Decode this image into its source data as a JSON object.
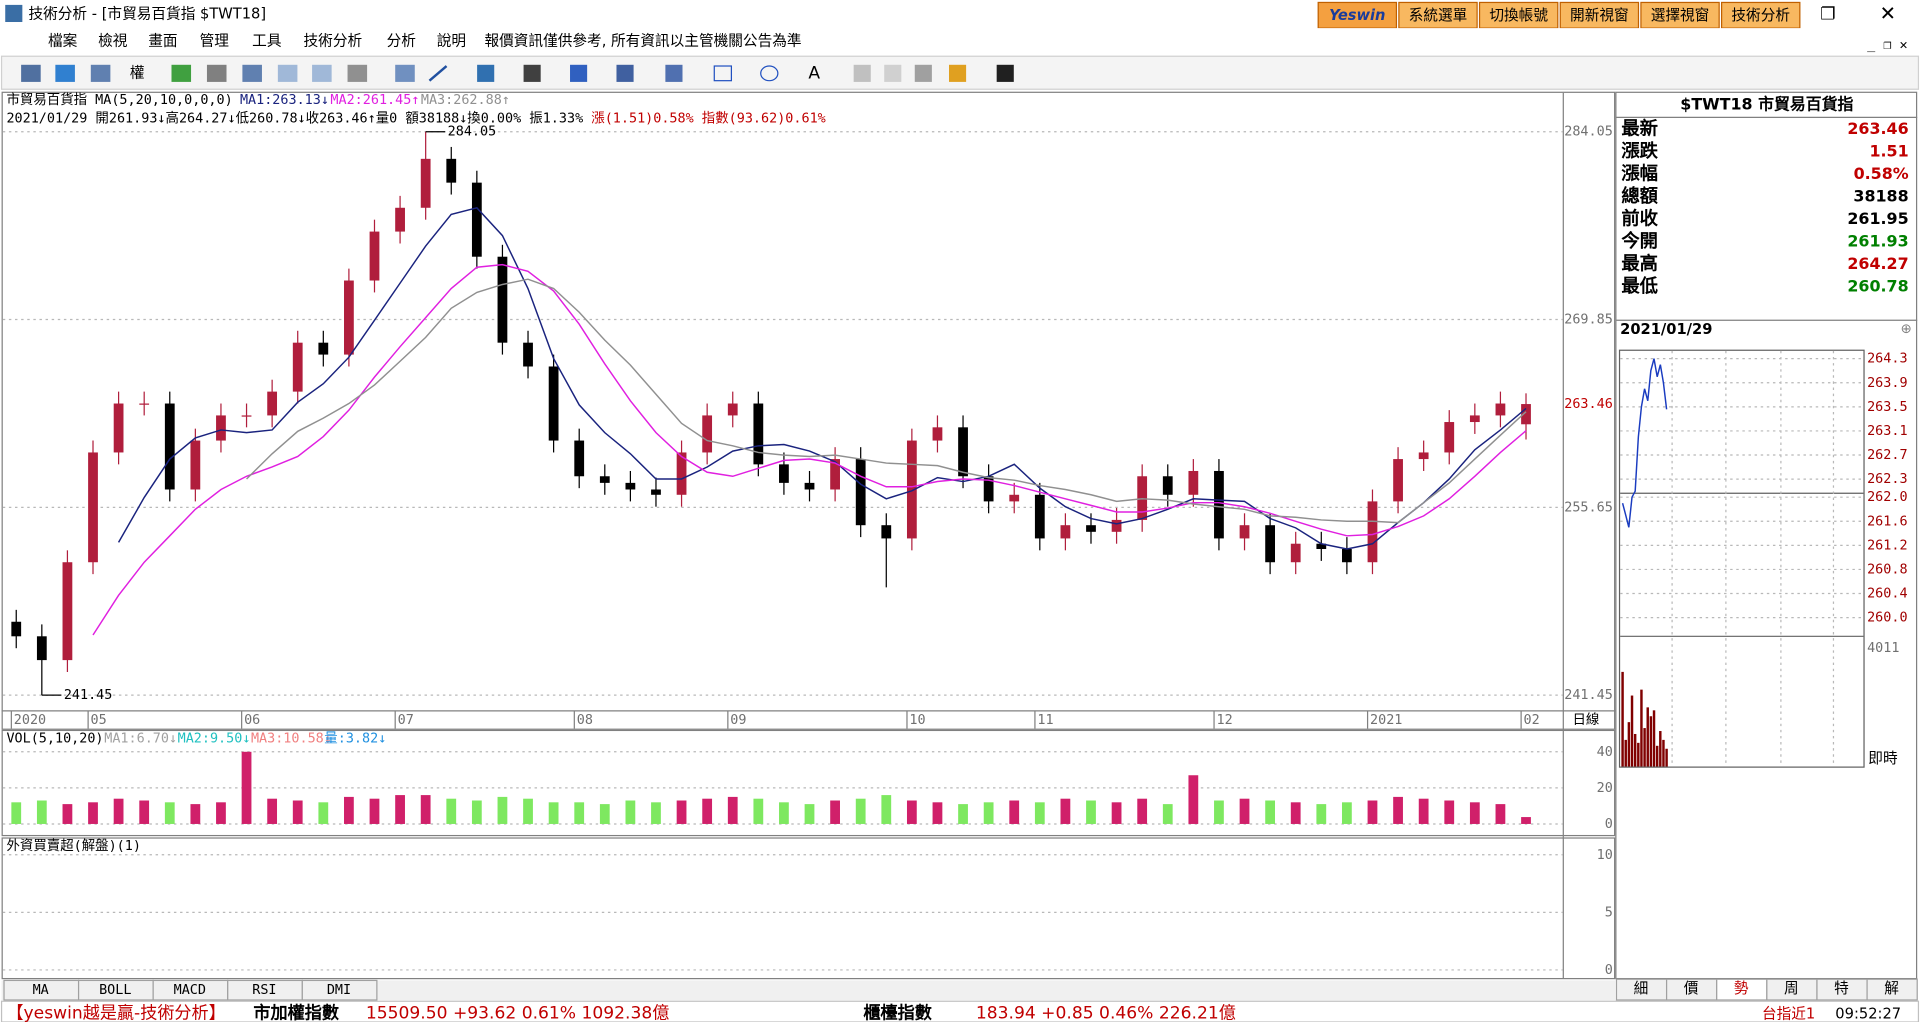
{
  "window": {
    "title": "技術分析 - [市貿易百貨指 $TWT18]",
    "logo": "Yeswin",
    "buttons": [
      "系統選單",
      "切換帳號",
      "開新視窗",
      "選擇視窗",
      "技術分析"
    ]
  },
  "menu": {
    "items": [
      "檔案",
      "檢視",
      "畫面",
      "管理",
      "工具",
      "技術分析",
      "分析",
      "說明"
    ],
    "notice": "報價資訊僅供參考, 所有資訊以主管機關公告為準"
  },
  "toolbar": {
    "label": "權"
  },
  "chart_data": [
    {
      "type": "candlestick",
      "title": "市貿易百貨指 MA(5,20,10,0,0,0)",
      "info": [
        {
          "text": "2021/01/29 開261.93↓高264.27↓低260.78↓收263.46↑量0 額38188↓換0.00% 振1.33% ",
          "color": "#000000"
        },
        {
          "text": "漲(1.51)0.58% 指數(93.62)0.61%",
          "color": "#c00000"
        }
      ],
      "period_label": "日線",
      "categories": [
        "2020",
        null,
        null,
        "05",
        null,
        null,
        null,
        null,
        null,
        "06",
        null,
        null,
        null,
        null,
        null,
        "07",
        null,
        null,
        null,
        null,
        null,
        null,
        "08",
        null,
        null,
        null,
        null,
        null,
        "09",
        null,
        null,
        null,
        null,
        null,
        null,
        "10",
        null,
        null,
        null,
        null,
        "11",
        null,
        null,
        null,
        null,
        null,
        null,
        "12",
        null,
        null,
        null,
        null,
        null,
        "2021",
        null,
        null,
        null,
        null,
        null,
        "02"
      ],
      "open": [
        247.0,
        245.9,
        244.1,
        251.5,
        259.8,
        263.5,
        263.5,
        257.0,
        260.7,
        262.6,
        262.6,
        264.4,
        268.1,
        267.2,
        272.8,
        276.5,
        278.3,
        282.0,
        280.2,
        274.6,
        268.1,
        266.3,
        260.7,
        258.0,
        257.5,
        257.0,
        256.6,
        259.8,
        262.6,
        263.5,
        258.9,
        257.5,
        257.0,
        259.3,
        254.3,
        253.3,
        260.7,
        261.7,
        258.0,
        256.1,
        256.6,
        253.3,
        254.3,
        253.8,
        254.7,
        258.0,
        256.6,
        258.4,
        253.3,
        254.3,
        251.5,
        252.9,
        252.5,
        251.5,
        256.1,
        259.3,
        259.8,
        262.1,
        262.6,
        261.93
      ],
      "high": [
        247.9,
        246.8,
        252.4,
        260.7,
        264.4,
        264.4,
        264.4,
        261.6,
        263.5,
        263.5,
        265.3,
        269.0,
        269.0,
        273.7,
        277.4,
        279.2,
        284.05,
        282.9,
        281.1,
        275.5,
        269.0,
        267.2,
        261.6,
        258.9,
        258.4,
        257.9,
        260.7,
        263.5,
        264.4,
        264.4,
        259.8,
        258.4,
        260.2,
        260.2,
        255.2,
        261.6,
        262.6,
        262.6,
        258.9,
        257.5,
        257.5,
        255.2,
        255.2,
        255.6,
        258.9,
        258.9,
        259.3,
        259.3,
        255.2,
        255.2,
        253.8,
        253.8,
        253.4,
        257.0,
        260.2,
        260.7,
        263.0,
        263.5,
        264.4,
        264.27
      ],
      "low": [
        245.0,
        241.45,
        243.2,
        250.6,
        258.9,
        262.6,
        256.1,
        256.1,
        259.8,
        261.7,
        261.7,
        263.5,
        266.3,
        266.3,
        271.9,
        275.6,
        277.4,
        279.3,
        273.7,
        267.2,
        265.4,
        259.8,
        257.1,
        256.6,
        256.1,
        255.7,
        255.7,
        258.9,
        261.7,
        258.0,
        256.6,
        256.1,
        256.1,
        253.4,
        249.6,
        252.4,
        259.8,
        257.1,
        255.2,
        255.2,
        252.4,
        252.4,
        252.9,
        252.9,
        253.8,
        255.7,
        255.7,
        252.4,
        252.4,
        250.6,
        250.6,
        251.6,
        250.6,
        250.6,
        255.2,
        258.4,
        258.9,
        261.2,
        261.7,
        260.78
      ],
      "close": [
        245.9,
        244.1,
        251.5,
        259.8,
        263.5,
        263.5,
        257.0,
        260.7,
        262.6,
        262.6,
        264.4,
        268.1,
        267.2,
        272.8,
        276.5,
        278.3,
        282.0,
        280.2,
        274.6,
        268.1,
        266.3,
        260.7,
        258.0,
        257.5,
        257.0,
        256.6,
        259.8,
        262.6,
        263.5,
        258.9,
        257.5,
        257.0,
        259.3,
        254.3,
        253.3,
        260.7,
        261.7,
        258.0,
        256.1,
        256.6,
        253.3,
        254.3,
        253.8,
        254.7,
        258.0,
        256.6,
        258.4,
        253.3,
        254.3,
        251.5,
        252.9,
        252.5,
        251.5,
        256.1,
        259.3,
        259.8,
        262.1,
        262.6,
        263.5,
        263.46
      ],
      "up_color": "#b01e3c",
      "down_color": "#000000",
      "series": [
        {
          "name": "MA1:263.13↓",
          "color": "#1a237e",
          "values": [
            null,
            null,
            null,
            null,
            253.0,
            256.4,
            259.3,
            260.9,
            261.5,
            261.3,
            261.5,
            263.6,
            265.0,
            267.0,
            269.8,
            272.6,
            275.4,
            277.8,
            278.3,
            276.2,
            272.2,
            266.9,
            263.4,
            261.3,
            259.7,
            257.8,
            257.8,
            258.7,
            259.9,
            260.3,
            260.4,
            259.9,
            259.1,
            257.4,
            256.3,
            256.9,
            257.9,
            257.6,
            258.0,
            258.9,
            257.1,
            255.7,
            254.8,
            254.4,
            254.8,
            255.5,
            256.3,
            256.2,
            256.1,
            254.8,
            254.1,
            252.9,
            252.5,
            252.9,
            254.5,
            256.0,
            257.8,
            260.0,
            261.5,
            263.13
          ]
        },
        {
          "name": "MA2:261.45↑",
          "color": "#e020e0",
          "values": [
            null,
            null,
            null,
            246.0,
            249.0,
            251.5,
            253.5,
            255.5,
            257.0,
            258.0,
            258.7,
            259.5,
            261.0,
            263.0,
            265.5,
            267.8,
            270.0,
            272.2,
            273.8,
            274.0,
            273.5,
            272.0,
            269.5,
            266.5,
            263.7,
            261.3,
            259.5,
            258.3,
            258.0,
            258.6,
            259.2,
            259.3,
            259.0,
            258.0,
            257.2,
            257.2,
            257.6,
            257.8,
            257.7,
            257.3,
            256.8,
            256.3,
            255.8,
            255.3,
            255.3,
            255.6,
            256.0,
            256.0,
            255.7,
            255.2,
            254.6,
            254.0,
            253.5,
            253.6,
            254.2,
            255.0,
            256.3,
            258.0,
            259.8,
            261.45
          ]
        },
        {
          "name": "MA3:262.88↑",
          "color": "#909090",
          "values": [
            null,
            null,
            null,
            null,
            null,
            null,
            null,
            null,
            null,
            257.8,
            259.7,
            261.4,
            262.4,
            263.5,
            264.9,
            266.7,
            268.5,
            270.7,
            271.9,
            272.5,
            272.9,
            272.2,
            270.4,
            268.3,
            266.4,
            264.2,
            262.0,
            260.7,
            260.3,
            259.8,
            259.6,
            259.5,
            259.6,
            259.3,
            259.0,
            258.9,
            258.8,
            258.3,
            257.9,
            257.7,
            257.3,
            257.0,
            256.6,
            256.1,
            256.3,
            256.2,
            255.9,
            255.7,
            255.5,
            255.0,
            254.9,
            254.7,
            254.6,
            254.6,
            254.5,
            256.0,
            257.5,
            259.3,
            261.1,
            262.88
          ]
        }
      ],
      "ylim": [
        240.4,
        286.8
      ],
      "yticks": [
        284.05,
        269.85,
        255.65,
        241.45
      ],
      "grid": true
    },
    {
      "type": "bar",
      "title": "VOL(5,10,20)",
      "legend": [
        {
          "text": "MA1:6.70↓",
          "color": "#a0a0a0"
        },
        {
          "text": "MA2:9.50↓",
          "color": "#20c0c0"
        },
        {
          "text": "MA3:10.58↓",
          "color": "#f08080"
        },
        {
          "text": "量:3.82↓",
          "color": "#2090e0"
        }
      ],
      "values": [
        12,
        13,
        11,
        12,
        14,
        13,
        12,
        11,
        12,
        40,
        14,
        13,
        12,
        15,
        14,
        16,
        16,
        14,
        13,
        15,
        14,
        12,
        12,
        11,
        13,
        12,
        13,
        14,
        15,
        14,
        12,
        11,
        13,
        14,
        16,
        13,
        12,
        11,
        12,
        13,
        12,
        14,
        13,
        12,
        14,
        11,
        27,
        13,
        14,
        13,
        12,
        11,
        12,
        13,
        15,
        14,
        13,
        12,
        11,
        3.82
      ],
      "up_color": "#d0206a",
      "down_color": "#7ee860",
      "ylim": [
        0,
        51.5
      ],
      "yticks": [
        0,
        20,
        40
      ],
      "grid": true
    },
    {
      "type": "bar",
      "title": "外資買賣超(解盤)(1)",
      "ylim": [
        -0.7,
        11.4
      ],
      "yticks": [
        0,
        5,
        10
      ],
      "grid": true
    },
    {
      "type": "line",
      "title": "2021/01/29",
      "values": [
        261.9,
        261.7,
        261.5,
        262.0,
        262.1,
        263.0,
        263.5,
        263.8,
        263.6,
        264.1,
        264.3,
        264.0,
        264.2,
        263.9,
        263.46
      ],
      "color": "#1a3cc0",
      "ylim": [
        259.7,
        264.45
      ],
      "yticks": [
        264.3,
        263.9,
        263.5,
        263.1,
        262.7,
        262.3,
        {
          "value": 262,
          "label": "262.0"
        },
        261.6,
        261.2,
        260.8,
        260.4,
        {
          "value": 260,
          "label": "260.0"
        }
      ],
      "volume": {
        "values": [
          3200,
          900,
          1500,
          2400,
          1100,
          800,
          2600,
          1300,
          2000,
          1700,
          1900,
          700,
          1200,
          900,
          600
        ],
        "color": "#800000",
        "ylim": [
          0,
          4011
        ],
        "yticks": [
          4011
        ],
        "label": "即時"
      },
      "grid": true
    }
  ],
  "quote": {
    "title": "$TWT18 市貿易百貨指",
    "rows": [
      {
        "label": "最新",
        "value": 263.46,
        "color": "#c00000"
      },
      {
        "label": "漲跌",
        "value": 1.51,
        "color": "#c00000"
      },
      {
        "label": "漲幅",
        "value": "0.58%",
        "color": "#c00000"
      },
      {
        "label": "總額",
        "value": 38188,
        "color": "#000000"
      },
      {
        "label": "前收",
        "value": 261.95,
        "color": "#000000"
      },
      {
        "label": "今開",
        "value": 261.93,
        "color": "#008000"
      },
      {
        "label": "最高",
        "value": 264.27,
        "color": "#c00000"
      },
      {
        "label": "最低",
        "value": 260.78,
        "color": "#008000"
      }
    ]
  },
  "tabs": {
    "indicators": [
      "MA",
      "BOLL",
      "MACD",
      "RSI",
      "DMI"
    ],
    "panels": [
      "細",
      "價",
      "勢",
      "周",
      "特",
      "解"
    ]
  },
  "status": {
    "brand": "【yeswin越是贏-技術分析】",
    "items": [
      {
        "name": "市加權指數",
        "value": "15509.50 +93.62 0.61% 1092.38億"
      },
      {
        "name": "櫃檯指數",
        "value": "183.94 +0.85 0.46% 226.21億"
      }
    ],
    "future": "台指近1",
    "time": "09:52:27"
  }
}
